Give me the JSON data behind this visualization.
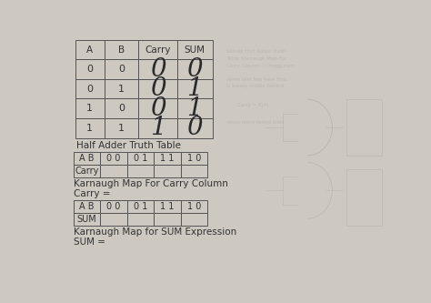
{
  "bg_color": "#cdc8c0",
  "text_color": "#333333",
  "title": "Half Adder Truth Table",
  "tt_headers": [
    "A",
    "B",
    "Carry",
    "SUM"
  ],
  "tt_ab_rows": [
    [
      "0",
      "0"
    ],
    [
      "0",
      "1"
    ],
    [
      "1",
      "0"
    ],
    [
      "1",
      "1"
    ]
  ],
  "carry_vals": [
    "0",
    "0",
    "0",
    "1"
  ],
  "sum_vals": [
    "0",
    "1",
    "1",
    "0"
  ],
  "kmap_carry_header": [
    "A B",
    "0 0",
    "0 1",
    "1 1",
    "1 0"
  ],
  "kmap_carry_row": [
    "Carry",
    "",
    "",
    "",
    ""
  ],
  "kmap_carry_label": "Karnaugh Map For Carry Column",
  "carry_eq": "Carry =",
  "kmap_sum_header": [
    "A B",
    "0 0",
    "0 1",
    "1 1",
    "1 0"
  ],
  "kmap_sum_row": [
    "SUM",
    "",
    "",
    "",
    ""
  ],
  "kmap_sum_label": "Karnaugh Map for SUM Expression",
  "sum_eq": "SUM ="
}
